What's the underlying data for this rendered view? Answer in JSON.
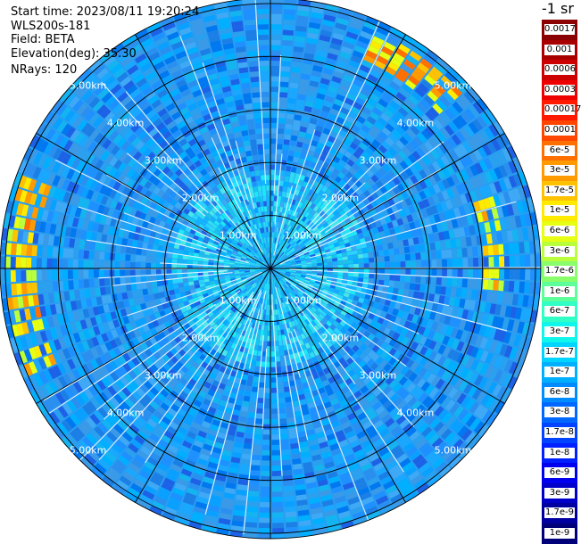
{
  "header": {
    "start_time": "Start time: 2023/08/11 19:20:24",
    "site": "WLS200s-181",
    "field": "Field: BETA",
    "elevation": "Elevation(deg): 35.30",
    "nrays": "NRays: 120"
  },
  "radar": {
    "nrays": 120,
    "ring_labels": [
      "1.00km",
      "2.00km",
      "3.00km",
      "4.00km",
      "5.00km"
    ],
    "rings_km": [
      1,
      2,
      3,
      4,
      5
    ],
    "max_range_km": 5.1,
    "spoke_count": 12
  },
  "colorbar": {
    "unit": "-1 sr",
    "levels": [
      {
        "label": "0.0017",
        "color": "#8b0000"
      },
      {
        "label": "0.001",
        "color": "#a80000"
      },
      {
        "label": "0.0006",
        "color": "#cc0000"
      },
      {
        "label": "0.0003",
        "color": "#ee0000"
      },
      {
        "label": "0.00017",
        "color": "#ff1a00"
      },
      {
        "label": "0.0001",
        "color": "#ff4500"
      },
      {
        "label": "6e-5",
        "color": "#ff7000"
      },
      {
        "label": "3e-5",
        "color": "#ff9a00"
      },
      {
        "label": "1.7e-5",
        "color": "#ffc200"
      },
      {
        "label": "1e-5",
        "color": "#ffea00"
      },
      {
        "label": "6e-6",
        "color": "#e6ff12"
      },
      {
        "label": "3e-6",
        "color": "#baff3c"
      },
      {
        "label": "1.7e-6",
        "color": "#8aff6c"
      },
      {
        "label": "1e-6",
        "color": "#5cff9a"
      },
      {
        "label": "6e-7",
        "color": "#30ffc6"
      },
      {
        "label": "3e-7",
        "color": "#10f6ea"
      },
      {
        "label": "1.7e-7",
        "color": "#00d4ff"
      },
      {
        "label": "1e-7",
        "color": "#00b0ff"
      },
      {
        "label": "6e-8",
        "color": "#008cff"
      },
      {
        "label": "3e-8",
        "color": "#0068ff"
      },
      {
        "label": "1.7e-8",
        "color": "#0044ff"
      },
      {
        "label": "1e-8",
        "color": "#0020ff"
      },
      {
        "label": "6e-9",
        "color": "#0000ee"
      },
      {
        "label": "3e-9",
        "color": "#0000c8"
      },
      {
        "label": "1.7e-9",
        "color": "#0000a0"
      },
      {
        "label": "1e-9",
        "color": "#000078"
      }
    ]
  }
}
